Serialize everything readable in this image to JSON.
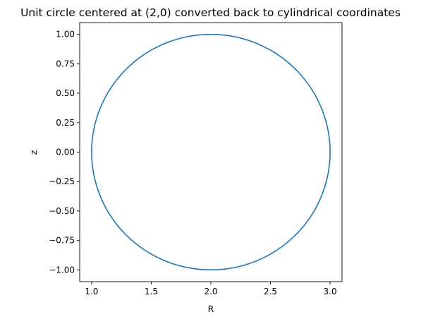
{
  "chart_data": {
    "type": "line",
    "title": "Unit circle centered at (2,0) converted back to cylindrical coordinates",
    "xlabel": "R",
    "ylabel": "z",
    "xlim": [
      0.9,
      3.1
    ],
    "ylim": [
      -1.1,
      1.1
    ],
    "xticks": [
      1.0,
      1.5,
      2.0,
      2.5,
      3.0
    ],
    "xtick_labels": [
      "1.0",
      "1.5",
      "2.0",
      "2.5",
      "3.0"
    ],
    "yticks": [
      1.0,
      0.75,
      0.5,
      0.25,
      0.0,
      -0.25,
      -0.5,
      -0.75,
      -1.0
    ],
    "ytick_labels": [
      "1.00",
      "0.75",
      "0.50",
      "0.25",
      "0.00",
      "−0.25",
      "−0.50",
      "−0.75",
      "−1.00"
    ],
    "grid": false,
    "legend": "none",
    "aspect": "equal",
    "series": [
      {
        "shape": "circle",
        "center": [
          2.0,
          0.0
        ],
        "radius": 1.0,
        "color": "#1f77b4"
      }
    ]
  }
}
